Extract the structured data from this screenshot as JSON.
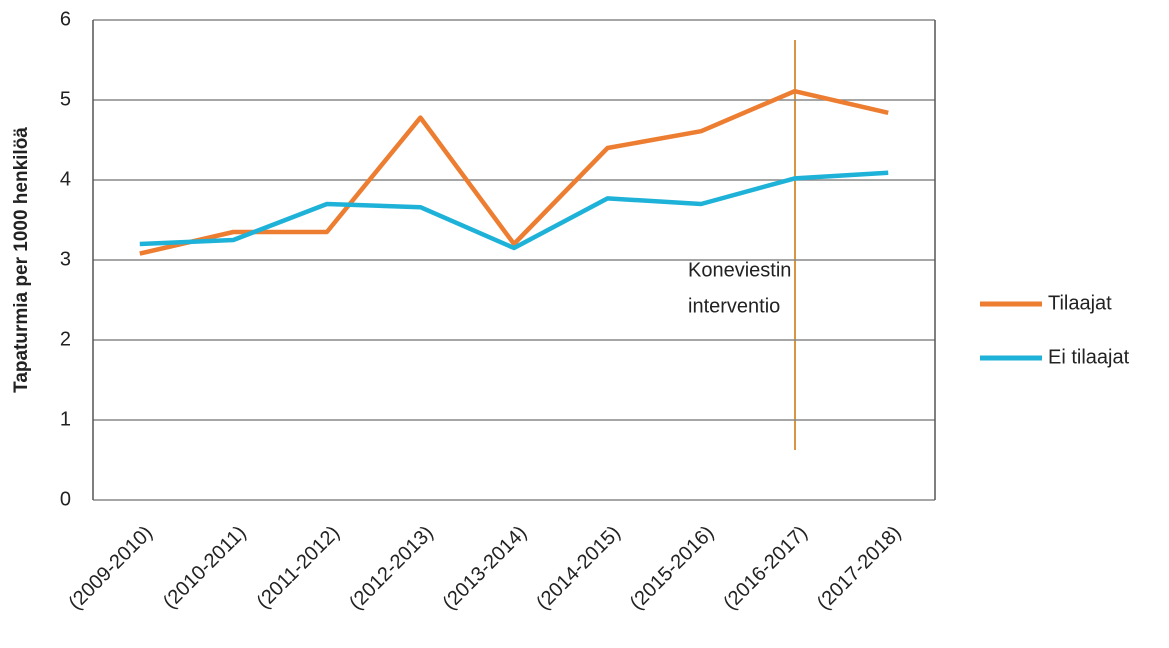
{
  "chart_data": {
    "type": "line",
    "ylabel": "Tapaturmia per 1000 henkilöä",
    "categories": [
      "(2009-2010)",
      "(2010-2011)",
      "(2011-2012)",
      "(2012-2013)",
      "(2013-2014)",
      "(2014-2015)",
      "(2015-2016)",
      "(2016-2017)",
      "(2017-2018)"
    ],
    "series": [
      {
        "name": "Tilaajat",
        "color": "#ed7d31",
        "values": [
          3.08,
          3.35,
          3.35,
          4.78,
          3.2,
          4.4,
          4.61,
          5.11,
          4.84
        ]
      },
      {
        "name": "Ei tilaajat",
        "color": "#1fb2d8",
        "values": [
          3.2,
          3.25,
          3.7,
          3.66,
          3.15,
          3.77,
          3.7,
          4.02,
          4.09
        ]
      }
    ],
    "ylim": [
      0,
      6
    ],
    "yticks": [
      0,
      1,
      2,
      3,
      4,
      5,
      6
    ],
    "grid": true,
    "legend": "right",
    "annotation": [
      "Koneviestin",
      "interventio"
    ]
  }
}
